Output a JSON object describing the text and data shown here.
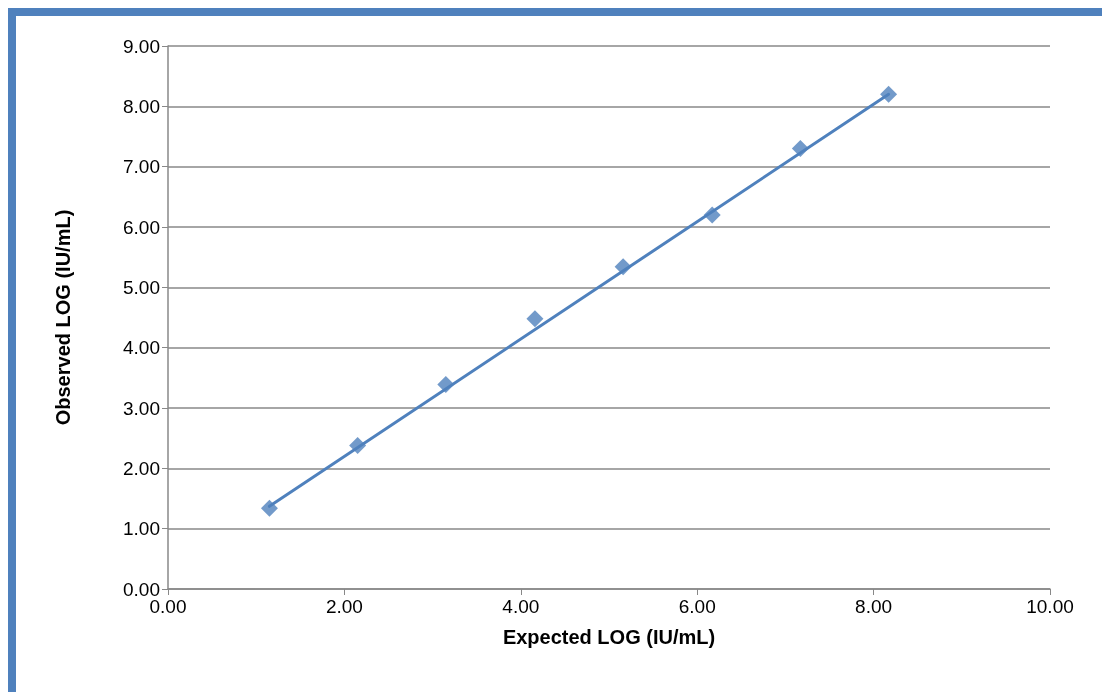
{
  "chart_data": {
    "type": "scatter",
    "xlabel": "Expected LOG (IU/mL)",
    "ylabel": "Observed LOG (IU/mL)",
    "xlim": [
      0,
      10
    ],
    "xticks": [
      {
        "value": 0,
        "label": "0.00"
      },
      {
        "value": 2,
        "label": "2.00"
      },
      {
        "value": 4,
        "label": "4.00"
      },
      {
        "value": 6,
        "label": "6.00"
      },
      {
        "value": 8,
        "label": "8.00"
      },
      {
        "value": 10,
        "label": "10.00"
      }
    ],
    "ylim": [
      0,
      9
    ],
    "yticks": [
      {
        "value": 0,
        "label": "0.00"
      },
      {
        "value": 1,
        "label": "1.00"
      },
      {
        "value": 2,
        "label": "2.00"
      },
      {
        "value": 3,
        "label": "3.00"
      },
      {
        "value": 4,
        "label": "4.00"
      },
      {
        "value": 5,
        "label": "5.00"
      },
      {
        "value": 6,
        "label": "6.00"
      },
      {
        "value": 7,
        "label": "7.00"
      },
      {
        "value": 8,
        "label": "8.00"
      },
      {
        "value": 9,
        "label": "9.00"
      }
    ],
    "grid": "y",
    "marker": "diamond",
    "series": [
      {
        "color": "#4f81bd",
        "x": [
          1.15,
          2.15,
          3.15,
          4.16,
          5.16,
          6.17,
          7.17,
          8.17
        ],
        "values": [
          1.34,
          2.38,
          3.39,
          4.48,
          5.34,
          6.2,
          7.3,
          8.2
        ]
      },
      {
        "type": "line",
        "color": "#4f81bd",
        "marker": "none",
        "line_style": "solid",
        "x": [
          1.15,
          8.17
        ],
        "values": [
          1.37,
          8.2
        ]
      }
    ]
  }
}
